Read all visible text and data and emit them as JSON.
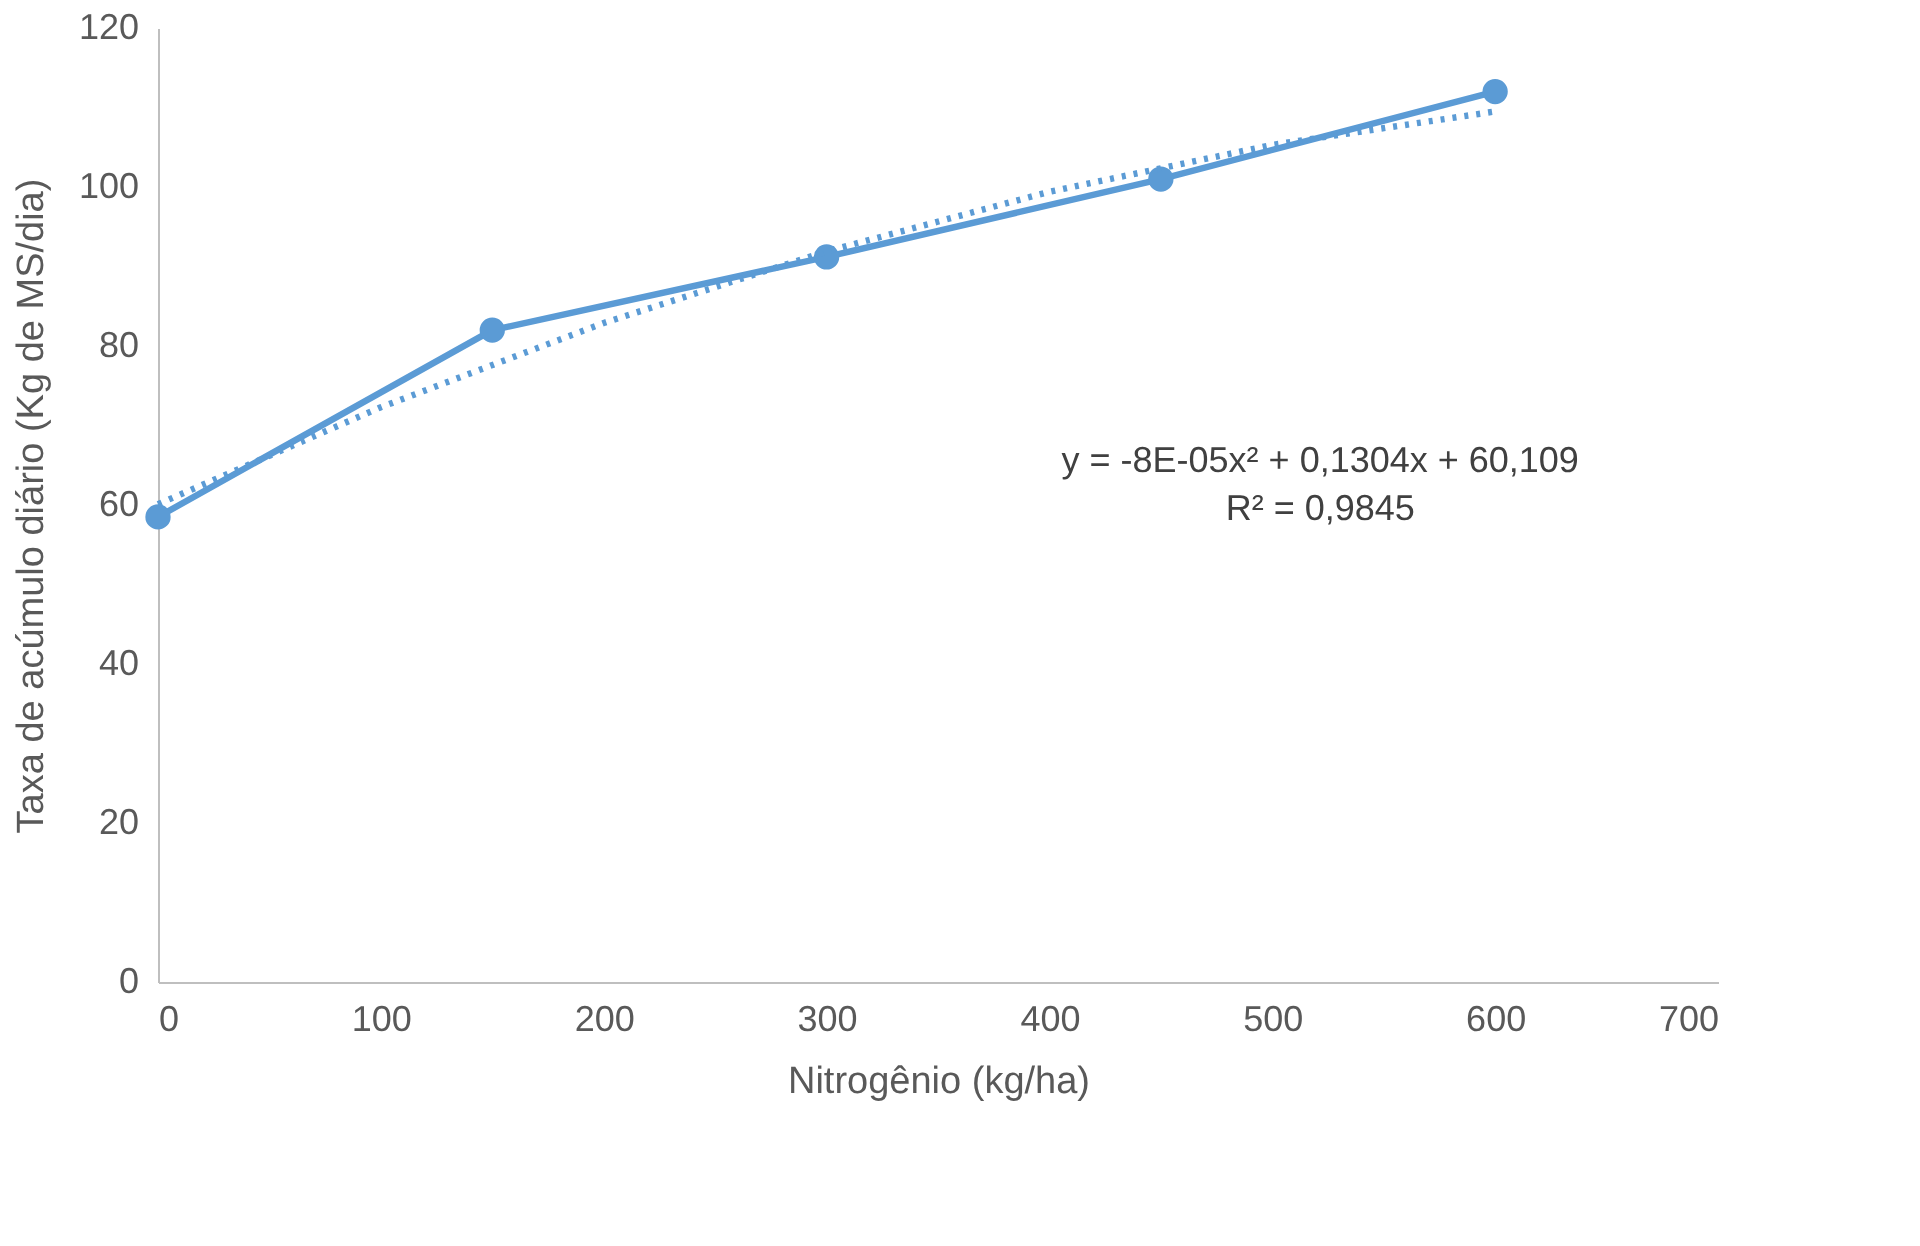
{
  "chart_data": {
    "type": "line",
    "xlabel": "Nitrogênio (kg/ha)",
    "ylabel": "Taxa de acúmulo diário (Kg de MS/dia)",
    "x": [
      0,
      150,
      300,
      450,
      600
    ],
    "series": [
      {
        "color": "#5b9bd5",
        "values": [
          58.5,
          82,
          91.2,
          101,
          112
        ],
        "marker": "circle",
        "line_style": "solid"
      },
      {
        "type": "line",
        "color": "#5b9bd5",
        "x": [
          0,
          100,
          200,
          300,
          400,
          500,
          600
        ],
        "values": [
          60.1,
          72.3,
          82.9,
          91.9,
          99.4,
          105.3,
          109.5
        ],
        "marker": "none",
        "line_style": "dotted"
      }
    ],
    "annotations": [
      "y = -8E-05x² + 0,1304x + 60,109",
      "R² = 0,9845"
    ],
    "xlim": [
      0,
      700
    ],
    "xticks": [
      0,
      100,
      200,
      300,
      400,
      500,
      600,
      700
    ],
    "ylim": [
      0,
      120
    ],
    "yticks": [
      0,
      20,
      40,
      60,
      80,
      100,
      120
    ],
    "grid": false,
    "legend": false
  }
}
